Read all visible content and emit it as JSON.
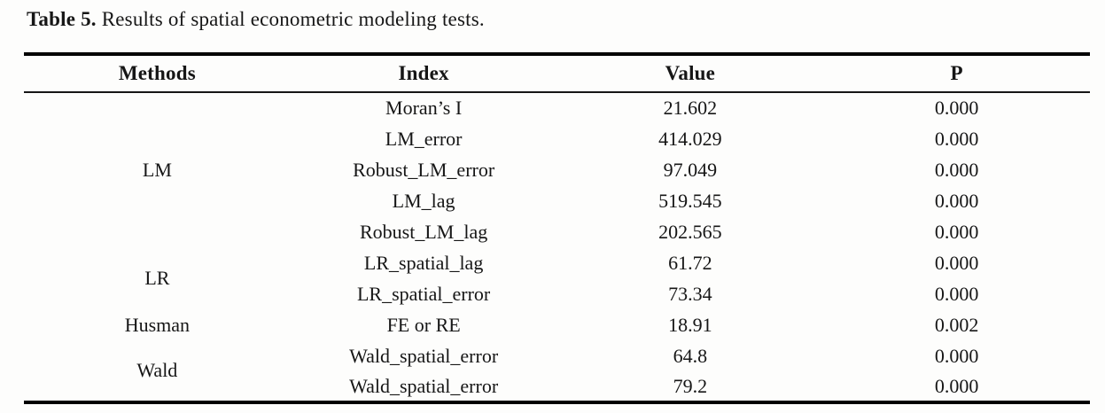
{
  "caption": {
    "label": "Table 5.",
    "text": "Results of spatial econometric modeling tests."
  },
  "colors": {
    "text": "#161616",
    "rule": "#000000",
    "background": "#fdfdfc"
  },
  "table": {
    "headers": [
      "Methods",
      "Index",
      "Value",
      "P"
    ],
    "groups": [
      {
        "method": "LM",
        "rows": [
          {
            "index": "Moran’s I",
            "value": "21.602",
            "p": "0.000"
          },
          {
            "index": "LM_error",
            "value": "414.029",
            "p": "0.000"
          },
          {
            "index": "Robust_LM_error",
            "value": "97.049",
            "p": "0.000"
          },
          {
            "index": "LM_lag",
            "value": "519.545",
            "p": "0.000"
          },
          {
            "index": "Robust_LM_lag",
            "value": "202.565",
            "p": "0.000"
          }
        ]
      },
      {
        "method": "LR",
        "rows": [
          {
            "index": "LR_spatial_lag",
            "value": "61.72",
            "p": "0.000"
          },
          {
            "index": "LR_spatial_error",
            "value": "73.34",
            "p": "0.000"
          }
        ]
      },
      {
        "method": "Husman",
        "rows": [
          {
            "index": "FE or RE",
            "value": "18.91",
            "p": "0.002"
          }
        ]
      },
      {
        "method": "Wald",
        "rows": [
          {
            "index": "Wald_spatial_error",
            "value": "64.8",
            "p": "0.000"
          },
          {
            "index": "Wald_spatial_error",
            "value": "79.2",
            "p": "0.000"
          }
        ]
      }
    ]
  }
}
